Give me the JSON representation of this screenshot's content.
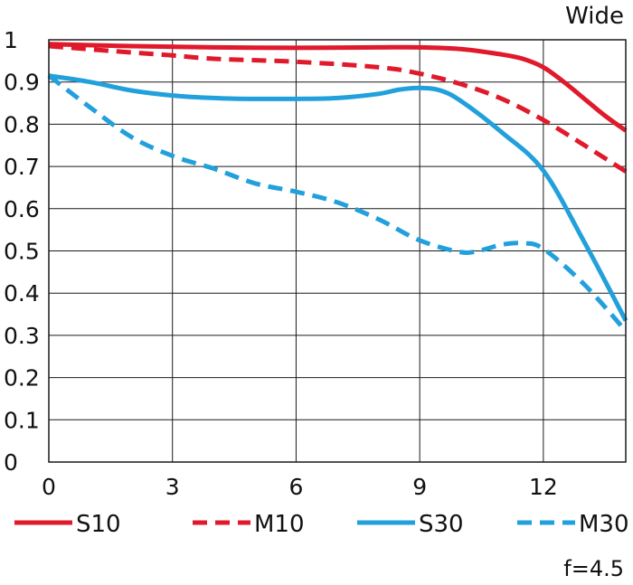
{
  "chart_data": {
    "type": "line",
    "title": "Wide",
    "footnote": "f=4.5",
    "xlabel": "",
    "ylabel": "",
    "xlim": [
      0,
      14
    ],
    "ylim": [
      0,
      1
    ],
    "xticks": [
      0,
      3,
      6,
      9,
      12
    ],
    "xtick_labels": [
      "0",
      "3",
      "6",
      "9",
      "12"
    ],
    "yticks": [
      0,
      0.1,
      0.2,
      0.3,
      0.4,
      0.5,
      0.6,
      0.7,
      0.8,
      0.9,
      1
    ],
    "ytick_labels": [
      "0",
      "0.1",
      "0.2",
      "0.3",
      "0.4",
      "0.5",
      "0.6",
      "0.7",
      "0.8",
      "0.9",
      "1"
    ],
    "grid": true,
    "legend_position": "bottom",
    "series": [
      {
        "name": "S10",
        "color": "#e0192b",
        "dashed": false,
        "x": [
          0,
          2,
          4,
          6,
          8,
          9,
          10,
          11,
          11.5,
          12,
          12.5,
          13,
          13.5,
          14
        ],
        "y": [
          0.99,
          0.985,
          0.982,
          0.981,
          0.982,
          0.982,
          0.978,
          0.965,
          0.955,
          0.935,
          0.9,
          0.86,
          0.82,
          0.785
        ]
      },
      {
        "name": "M10",
        "color": "#e0192b",
        "dashed": true,
        "x": [
          0,
          2,
          3,
          4,
          6,
          8,
          9,
          10,
          11,
          12,
          13,
          14
        ],
        "y": [
          0.985,
          0.97,
          0.963,
          0.955,
          0.948,
          0.935,
          0.92,
          0.895,
          0.86,
          0.81,
          0.75,
          0.688
        ]
      },
      {
        "name": "S30",
        "color": "#22a0dc",
        "dashed": false,
        "x": [
          0,
          1,
          2,
          3,
          4,
          5,
          6,
          7,
          8,
          8.5,
          9,
          9.5,
          10,
          11,
          12,
          13,
          14
        ],
        "y": [
          0.915,
          0.9,
          0.88,
          0.868,
          0.862,
          0.86,
          0.86,
          0.862,
          0.872,
          0.882,
          0.886,
          0.88,
          0.855,
          0.78,
          0.69,
          0.52,
          0.335
        ]
      },
      {
        "name": "M30",
        "color": "#22a0dc",
        "dashed": true,
        "x": [
          0,
          1,
          2,
          3,
          4,
          5,
          6,
          7,
          8,
          9,
          10,
          10.5,
          11,
          11.5,
          12,
          13,
          14
        ],
        "y": [
          0.915,
          0.84,
          0.77,
          0.725,
          0.695,
          0.66,
          0.64,
          0.615,
          0.575,
          0.525,
          0.497,
          0.502,
          0.515,
          0.518,
          0.505,
          0.42,
          0.31
        ]
      }
    ]
  }
}
